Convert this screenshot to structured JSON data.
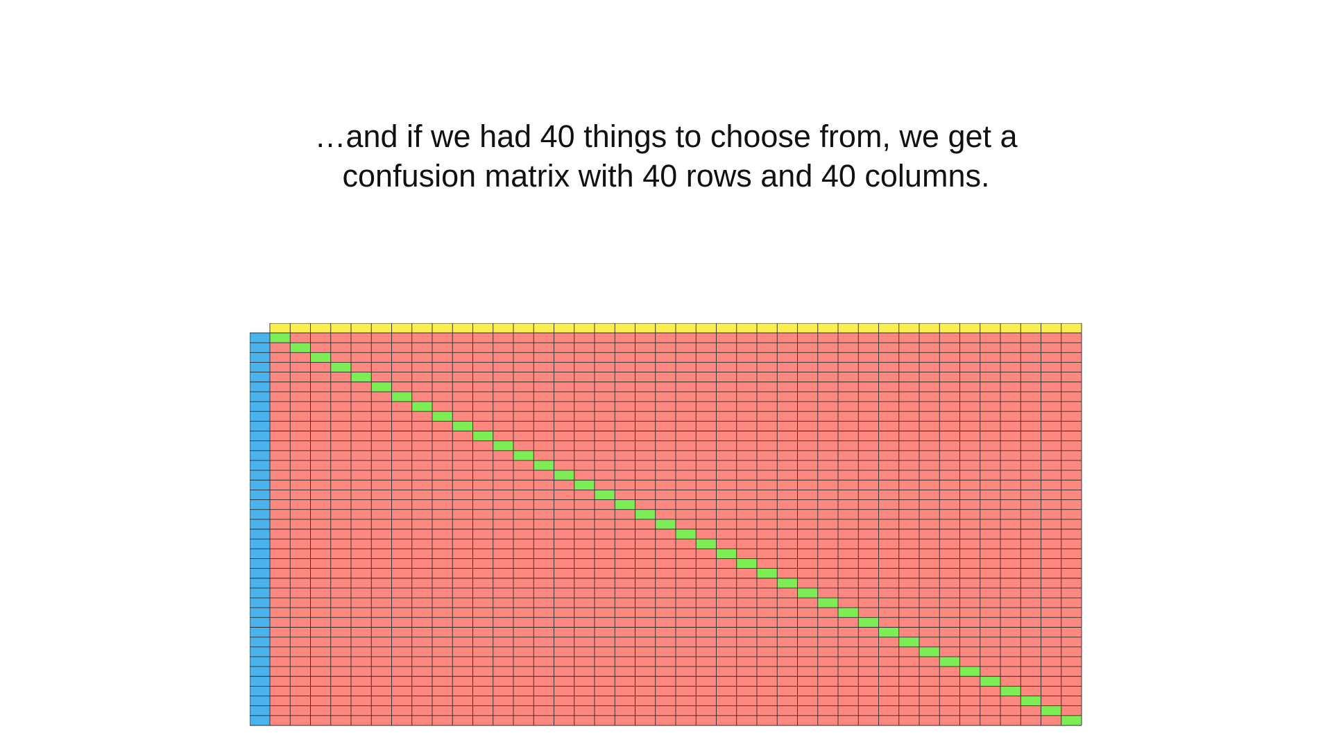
{
  "caption": {
    "line1": "…and if we had 40 things to choose from, we get a",
    "line2": "confusion matrix with 40 rows and 40 columns."
  },
  "matrix": {
    "rows": 40,
    "columns": 40,
    "colors": {
      "off_diagonal": "#fd8880",
      "diagonal": "#7ded56",
      "header_row": "#fbee50",
      "header_column": "#4ab2ec",
      "grid_line": "#2a2a2a"
    }
  }
}
